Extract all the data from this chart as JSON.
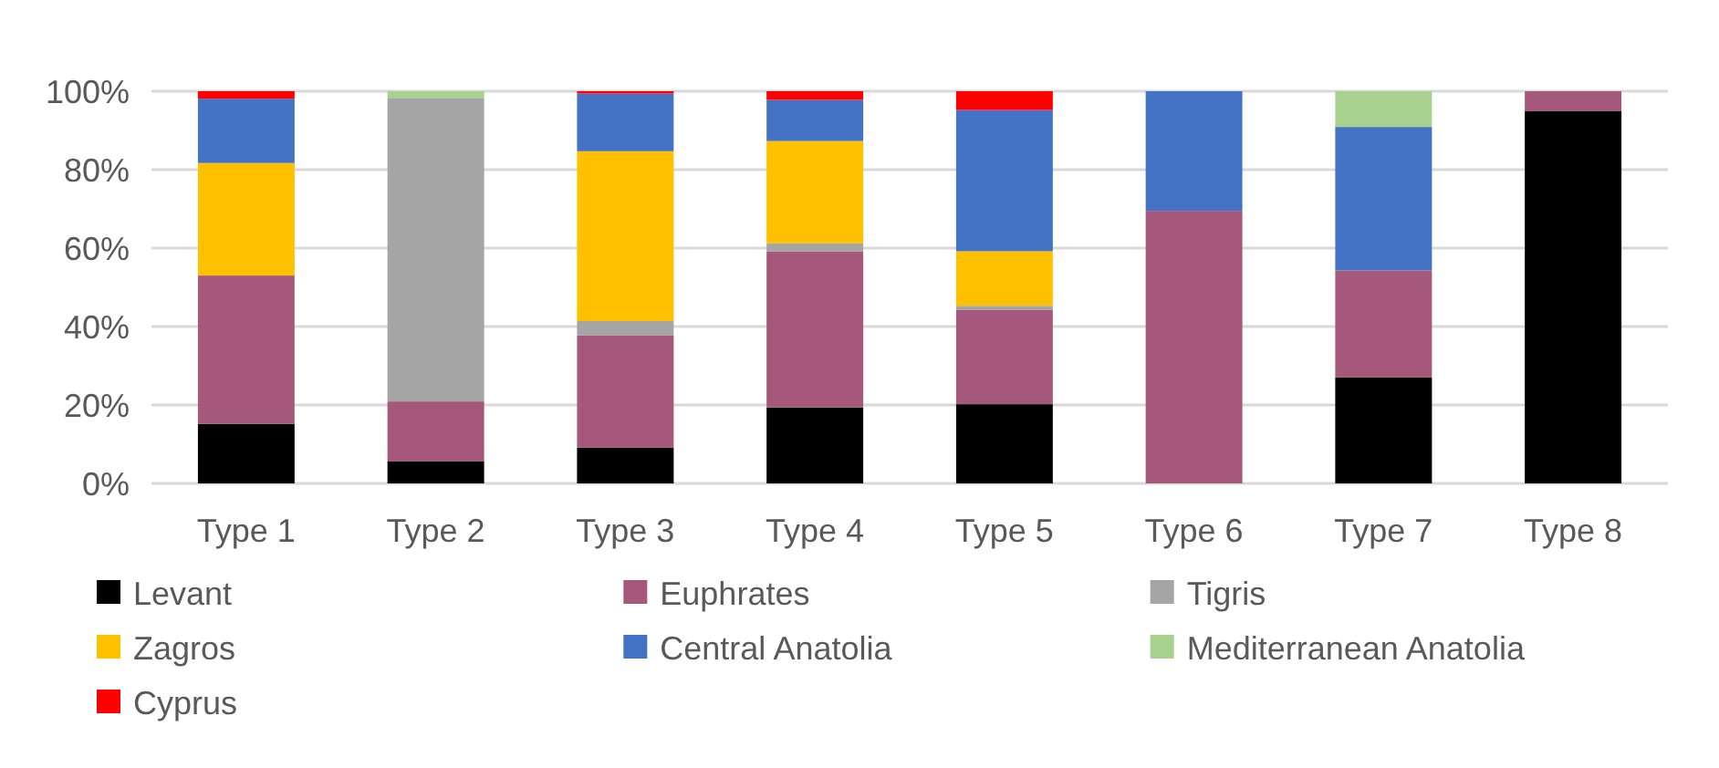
{
  "chart_data": {
    "type": "bar",
    "stacked": true,
    "categories": [
      "Type 1",
      "Type 2",
      "Type 3",
      "Type 4",
      "Type 5",
      "Type 6",
      "Type 7",
      "Type 8"
    ],
    "series": [
      {
        "name": "Levant",
        "color": "#000000",
        "values": [
          15.2,
          5.7,
          9.1,
          19.4,
          20.2,
          0,
          27.0,
          95.0
        ]
      },
      {
        "name": "Euphrates",
        "color": "#a5587c",
        "values": [
          37.8,
          15.2,
          28.7,
          39.8,
          24.0,
          69.5,
          27.3,
          5.0
        ]
      },
      {
        "name": "Tigris",
        "color": "#a5a5a5",
        "values": [
          0,
          77.4,
          3.6,
          2.0,
          1.1,
          0,
          0,
          0
        ]
      },
      {
        "name": "Zagros",
        "color": "#ffc000",
        "values": [
          28.7,
          0,
          43.3,
          26.1,
          13.9,
          0,
          0,
          0
        ]
      },
      {
        "name": "Central Anatolia",
        "color": "#4472c4",
        "values": [
          16.4,
          0,
          14.7,
          10.5,
          36.0,
          30.5,
          36.6,
          0
        ]
      },
      {
        "name": "Mediterranean Anatolia",
        "color": "#a9d18e",
        "values": [
          0,
          1.7,
          0,
          0,
          0,
          0,
          9.1,
          0
        ]
      },
      {
        "name": "Cyprus",
        "color": "#ff0000",
        "values": [
          1.9,
          0,
          0.6,
          2.2,
          4.8,
          0,
          0,
          0
        ]
      }
    ],
    "ylim": [
      0,
      100
    ],
    "yticks": [
      {
        "value": 0,
        "label": "0%"
      },
      {
        "value": 20,
        "label": "20%"
      },
      {
        "value": 40,
        "label": "40%"
      },
      {
        "value": 60,
        "label": "60%"
      },
      {
        "value": 80,
        "label": "80%"
      },
      {
        "value": 100,
        "label": "100%"
      }
    ],
    "grid": "y",
    "legend": "bottom"
  }
}
